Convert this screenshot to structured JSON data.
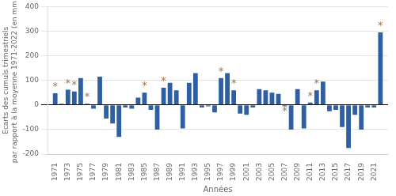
{
  "chart_data": {
    "type": "bar",
    "x": [
      1971,
      1972,
      1973,
      1974,
      1975,
      1976,
      1977,
      1978,
      1979,
      1980,
      1981,
      1982,
      1983,
      1984,
      1985,
      1986,
      1987,
      1988,
      1989,
      1990,
      1991,
      1992,
      1993,
      1994,
      1995,
      1996,
      1997,
      1998,
      1999,
      2000,
      2001,
      2002,
      2003,
      2004,
      2005,
      2006,
      2007,
      2008,
      2009,
      2010,
      2011,
      2012,
      2013,
      2014,
      2015,
      2016,
      2017,
      2018,
      2019,
      2020,
      2021,
      2022
    ],
    "values": [
      48,
      5,
      62,
      55,
      110,
      5,
      -15,
      115,
      -55,
      -75,
      -130,
      -10,
      -15,
      30,
      50,
      -20,
      -100,
      70,
      90,
      60,
      -95,
      90,
      130,
      -10,
      -5,
      -30,
      110,
      130,
      60,
      -35,
      -40,
      -10,
      65,
      60,
      50,
      45,
      -5,
      -100,
      65,
      -95,
      10,
      60,
      95,
      -25,
      -20,
      -90,
      -175,
      -40,
      -100,
      -10,
      -10,
      295
    ],
    "color": "#2e5fa3",
    "xlabel": "Années",
    "ylabel": "Ecarts des cumuls trimestriels\npar rapport à la moyenne 1971-2022 (en mm)",
    "xlim": [
      1969.8,
      2023.2
    ],
    "xticks": [
      1971,
      1973,
      1975,
      1977,
      1979,
      1981,
      1983,
      1985,
      1987,
      1989,
      1991,
      1993,
      1995,
      1997,
      1999,
      2001,
      2003,
      2005,
      2007,
      2009,
      2011,
      2013,
      2015,
      2017,
      2019,
      2021
    ],
    "ylim": [
      -200,
      400
    ],
    "yticks": [
      -200,
      -100,
      0,
      100,
      200,
      300,
      400
    ],
    "grid": "y",
    "annotations": [
      {
        "x": 1971,
        "text": "*",
        "color": "#a07040"
      },
      {
        "x": 1973,
        "text": "*",
        "color": "#a07040"
      },
      {
        "x": 1974,
        "text": "*",
        "color": "#a07040"
      },
      {
        "x": 1976,
        "text": "*",
        "color": "#a07040"
      },
      {
        "x": 1985,
        "text": "*",
        "color": "#a07040"
      },
      {
        "x": 1988,
        "text": "*",
        "color": "#a07040"
      },
      {
        "x": 1997,
        "text": "*",
        "color": "#a07040"
      },
      {
        "x": 1999,
        "text": "*",
        "color": "#a07040"
      },
      {
        "x": 2007,
        "text": "*",
        "color": "#a07040"
      },
      {
        "x": 2011,
        "text": "*",
        "color": "#a07040"
      },
      {
        "x": 2012,
        "text": "*",
        "color": "#a07040"
      },
      {
        "x": 2022,
        "text": "*",
        "color": "#a07040"
      }
    ]
  }
}
